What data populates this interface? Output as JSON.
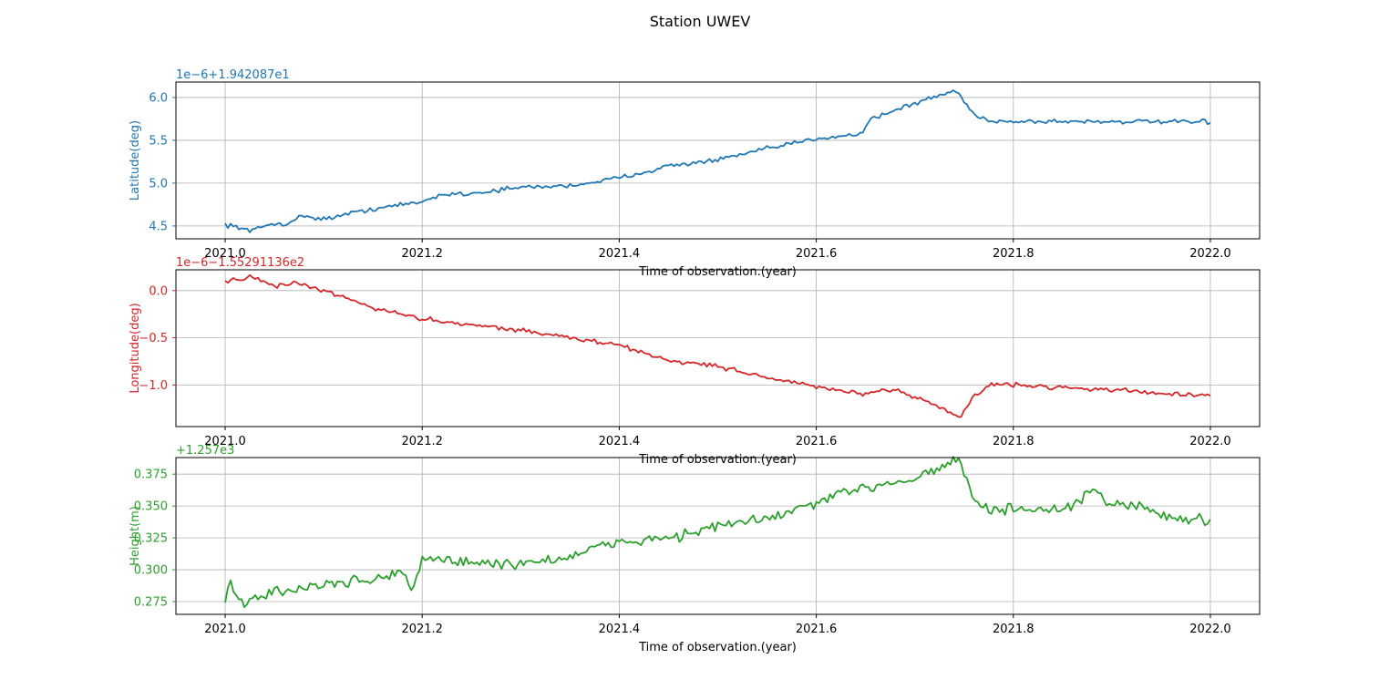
{
  "figure": {
    "suptitle": "Station UWEV"
  },
  "chart_data": [
    {
      "type": "line",
      "title": "",
      "xlabel": "Time of observation.(year)",
      "ylabel": "Latitude(deg)",
      "offset_text": "1e−6+1.942087e1",
      "color": "#1f77b4",
      "xlim": [
        2020.95,
        2022.05
      ],
      "ylim": [
        4.35,
        6.18
      ],
      "xticks": [
        2021.0,
        2021.2,
        2021.4,
        2021.6,
        2021.8,
        2022.0
      ],
      "xtick_labels": [
        "2021.0",
        "2021.2",
        "2021.4",
        "2021.6",
        "2021.8",
        "2022.0"
      ],
      "yticks": [
        4.5,
        5.0,
        5.5,
        6.0
      ],
      "ytick_labels": [
        "4.5",
        "5.0",
        "5.5",
        "6.0"
      ],
      "grid": true,
      "series": [
        {
          "x": [
            2021.0,
            2021.02,
            2021.025,
            2021.035,
            2021.04,
            2021.05,
            2021.06,
            2021.08,
            2021.1,
            2021.15,
            2021.2,
            2021.22,
            2021.25,
            2021.3,
            2021.35,
            2021.4,
            2021.45,
            2021.5,
            2021.55,
            2021.6,
            2021.62,
            2021.645,
            2021.655,
            2021.7,
            2021.74,
            2021.745,
            2021.76,
            2021.78,
            2021.8,
            2021.9,
            2022.0
          ],
          "y": [
            4.52,
            4.47,
            4.43,
            4.48,
            4.5,
            4.53,
            4.52,
            4.62,
            4.58,
            4.7,
            4.78,
            4.87,
            4.88,
            4.95,
            4.97,
            5.06,
            5.2,
            5.27,
            5.4,
            5.52,
            5.55,
            5.57,
            5.75,
            5.93,
            6.08,
            6.03,
            5.8,
            5.72,
            5.72,
            5.72,
            5.71
          ]
        }
      ]
    },
    {
      "type": "line",
      "title": "",
      "xlabel": "Time of observation.(year)",
      "ylabel": "Longitude(deg)",
      "offset_text": "1e−6−1.55291136e2",
      "color": "#d62728",
      "xlim": [
        2020.95,
        2022.05
      ],
      "ylim": [
        -1.44,
        0.22
      ],
      "xticks": [
        2021.0,
        2021.2,
        2021.4,
        2021.6,
        2021.8,
        2022.0
      ],
      "xtick_labels": [
        "2021.0",
        "2021.2",
        "2021.4",
        "2021.6",
        "2021.8",
        "2022.0"
      ],
      "yticks": [
        0.0,
        -0.5,
        -1.0
      ],
      "ytick_labels": [
        "0.0",
        "−0.5",
        "−1.0"
      ],
      "grid": true,
      "series": [
        {
          "x": [
            2021.0,
            2021.01,
            2021.03,
            2021.05,
            2021.07,
            2021.09,
            2021.1,
            2021.15,
            2021.2,
            2021.25,
            2021.3,
            2021.35,
            2021.4,
            2021.45,
            2021.5,
            2021.55,
            2021.6,
            2021.65,
            2021.68,
            2021.72,
            2021.745,
            2021.76,
            2021.78,
            2021.8,
            2021.9,
            2022.0
          ],
          "y": [
            0.1,
            0.12,
            0.14,
            0.04,
            0.08,
            0.02,
            0.0,
            -0.18,
            -0.3,
            -0.36,
            -0.42,
            -0.5,
            -0.58,
            -0.74,
            -0.8,
            -0.92,
            -1.02,
            -1.1,
            -1.05,
            -1.2,
            -1.35,
            -1.12,
            -0.98,
            -1.0,
            -1.05,
            -1.12
          ]
        }
      ]
    },
    {
      "type": "line",
      "title": "",
      "xlabel": "Time of observation.(year)",
      "ylabel": "Height(m)",
      "offset_text": "+1.257e3",
      "color": "#2ca02c",
      "xlim": [
        2020.95,
        2022.05
      ],
      "ylim": [
        0.265,
        0.388
      ],
      "xticks": [
        2021.0,
        2021.2,
        2021.4,
        2021.6,
        2021.8,
        2022.0
      ],
      "xtick_labels": [
        "2021.0",
        "2021.2",
        "2021.4",
        "2021.6",
        "2021.8",
        "2022.0"
      ],
      "yticks": [
        0.275,
        0.3,
        0.325,
        0.35,
        0.375
      ],
      "ytick_labels": [
        "0.275",
        "0.300",
        "0.325",
        "0.350",
        "0.375"
      ],
      "grid": true,
      "series": [
        {
          "x": [
            2021.0,
            2021.005,
            2021.015,
            2021.05,
            2021.1,
            2021.15,
            2021.18,
            2021.19,
            2021.2,
            2021.25,
            2021.3,
            2021.35,
            2021.4,
            2021.45,
            2021.5,
            2021.55,
            2021.6,
            2021.65,
            2021.7,
            2021.74,
            2021.745,
            2021.76,
            2021.78,
            2021.8,
            2021.85,
            2021.88,
            2021.9,
            2021.93,
            2021.95,
            2022.0
          ],
          "y": [
            0.275,
            0.29,
            0.273,
            0.283,
            0.288,
            0.292,
            0.3,
            0.28,
            0.31,
            0.305,
            0.305,
            0.31,
            0.322,
            0.325,
            0.334,
            0.34,
            0.352,
            0.365,
            0.372,
            0.386,
            0.385,
            0.355,
            0.345,
            0.348,
            0.345,
            0.362,
            0.35,
            0.352,
            0.342,
            0.338
          ]
        }
      ]
    }
  ]
}
